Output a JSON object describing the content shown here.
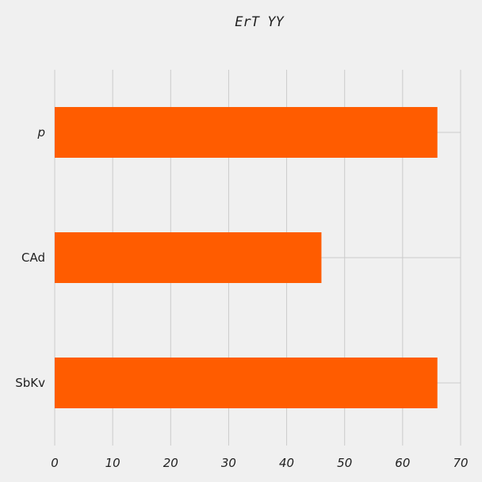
{
  "chart_data": {
    "type": "bar",
    "orientation": "horizontal",
    "title": "ErT YY",
    "categories": [
      "p",
      "CAd",
      "SbKv"
    ],
    "values": [
      66,
      46,
      66
    ],
    "xlim": [
      0,
      70
    ],
    "xticks": [
      0,
      10,
      20,
      30,
      40,
      50,
      60,
      70
    ],
    "xtick_labels": [
      "0",
      "10",
      "20",
      "30",
      "40",
      "50",
      "60",
      "70"
    ],
    "grid": true,
    "bar_color": "#ff5c00",
    "background_color": "#f0f0f0",
    "grid_color": "#cbcbcb"
  }
}
